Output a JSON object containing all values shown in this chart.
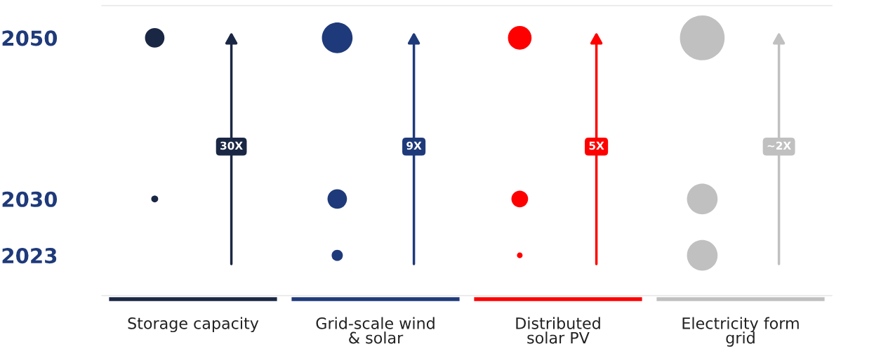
{
  "chart_data": {
    "type": "bubble",
    "categories": [
      "Storage capacity",
      "Grid-scale wind\n& solar",
      "Distributed\nsolar PV",
      "Electricity form\ngrid"
    ],
    "series": [
      {
        "values": [
          2050,
          2050,
          2050,
          2050
        ],
        "sizes": [
          0.19,
          0.47,
          0.28,
          1
        ],
        "colors": [
          "#1a2744",
          "#1f3a7a",
          "#ff0000",
          "#c0c0c0"
        ]
      },
      {
        "values": [
          2030,
          2030,
          2030,
          2030
        ],
        "sizes": [
          0.024,
          0.19,
          0.14,
          0.47
        ],
        "colors": [
          "#1a2744",
          "#1f3a7a",
          "#ff0000",
          "#c0c0c0"
        ]
      },
      {
        "values": [
          null,
          2023,
          2023,
          2023
        ],
        "sizes": [
          null,
          0.0625,
          0.016,
          0.47
        ],
        "colors": [
          "#1a2744",
          "#1f3a7a",
          "#ff0000",
          "#c0c0c0"
        ]
      }
    ],
    "ylim": [
      2018,
      2054
    ],
    "yticks": [
      2023,
      2030,
      2050
    ],
    "annotations": [
      "30X",
      "9X",
      "5X",
      "~2X"
    ],
    "grid": false,
    "legend": false
  }
}
